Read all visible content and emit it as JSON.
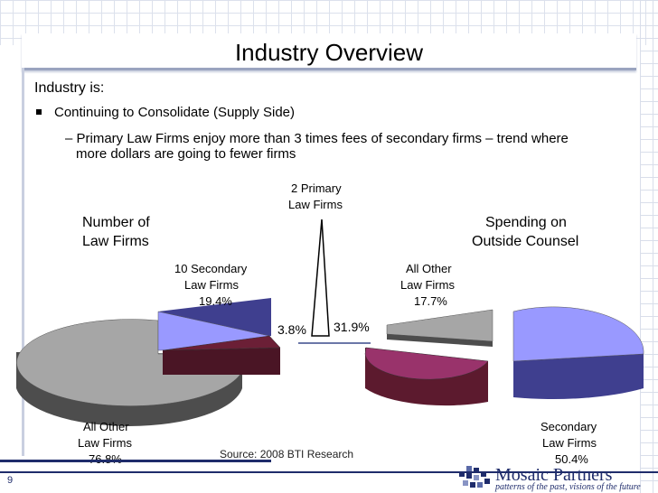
{
  "slide": {
    "title": "Industry Overview",
    "intro": "Industry is:",
    "bullet": "Continuing to Consolidate (Supply Side)",
    "sub_bullet_line1": "– Primary Law Firms enjoy more than 3 times fees of secondary firms – trend where",
    "sub_bullet_line2": "more dollars are going to fewer firms",
    "page_number": "9",
    "source": "Source: 2008 BTI Research"
  },
  "labels": {
    "left_chart_title_1": "Number of",
    "left_chart_title_2": "Law Firms",
    "right_chart_title_1": "Spending on",
    "right_chart_title_2": "Outside Counsel",
    "primary_1": "2 Primary",
    "primary_2": "Law Firms",
    "secondary10_1": "10 Secondary",
    "secondary10_2": "Law Firms",
    "secondary10_pct": "19.4%",
    "other_right_1": "All Other",
    "other_right_2": "Law Firms",
    "other_right_pct": "17.7%",
    "primary_left_pct": "3.8%",
    "primary_right_pct": "31.9%",
    "other_left_1": "All Other",
    "other_left_2": "Law Firms",
    "other_left_pct": "76.8%",
    "secondary_right_1": "Secondary",
    "secondary_right_2": "Law Firms",
    "secondary_right_pct": "50.4%"
  },
  "logo": {
    "name": "Mosaic Partners",
    "tagline": "patterns of the past, visions of the future"
  },
  "chart_data": [
    {
      "type": "pie",
      "title": "Number of Law Firms",
      "categories": [
        "All Other Law Firms",
        "10 Secondary Law Firms",
        "2 Primary Law Firms"
      ],
      "values": [
        76.8,
        19.4,
        3.8
      ],
      "colors": [
        "#a6a6a6",
        "#9999ff",
        "#7b1d3f"
      ]
    },
    {
      "type": "pie",
      "title": "Spending on Outside Counsel",
      "categories": [
        "All Other Law Firms",
        "2 Primary Law Firms",
        "Secondary Law Firms"
      ],
      "values": [
        17.7,
        31.9,
        50.4
      ],
      "colors": [
        "#a6a6a6",
        "#99336b",
        "#9999ff"
      ]
    }
  ],
  "colors": {
    "brand": "#1f2c6b",
    "gray": "#a6a6a6",
    "lavender": "#9999ff",
    "maroon": "#5c1a2e",
    "magenta": "#99336b"
  }
}
